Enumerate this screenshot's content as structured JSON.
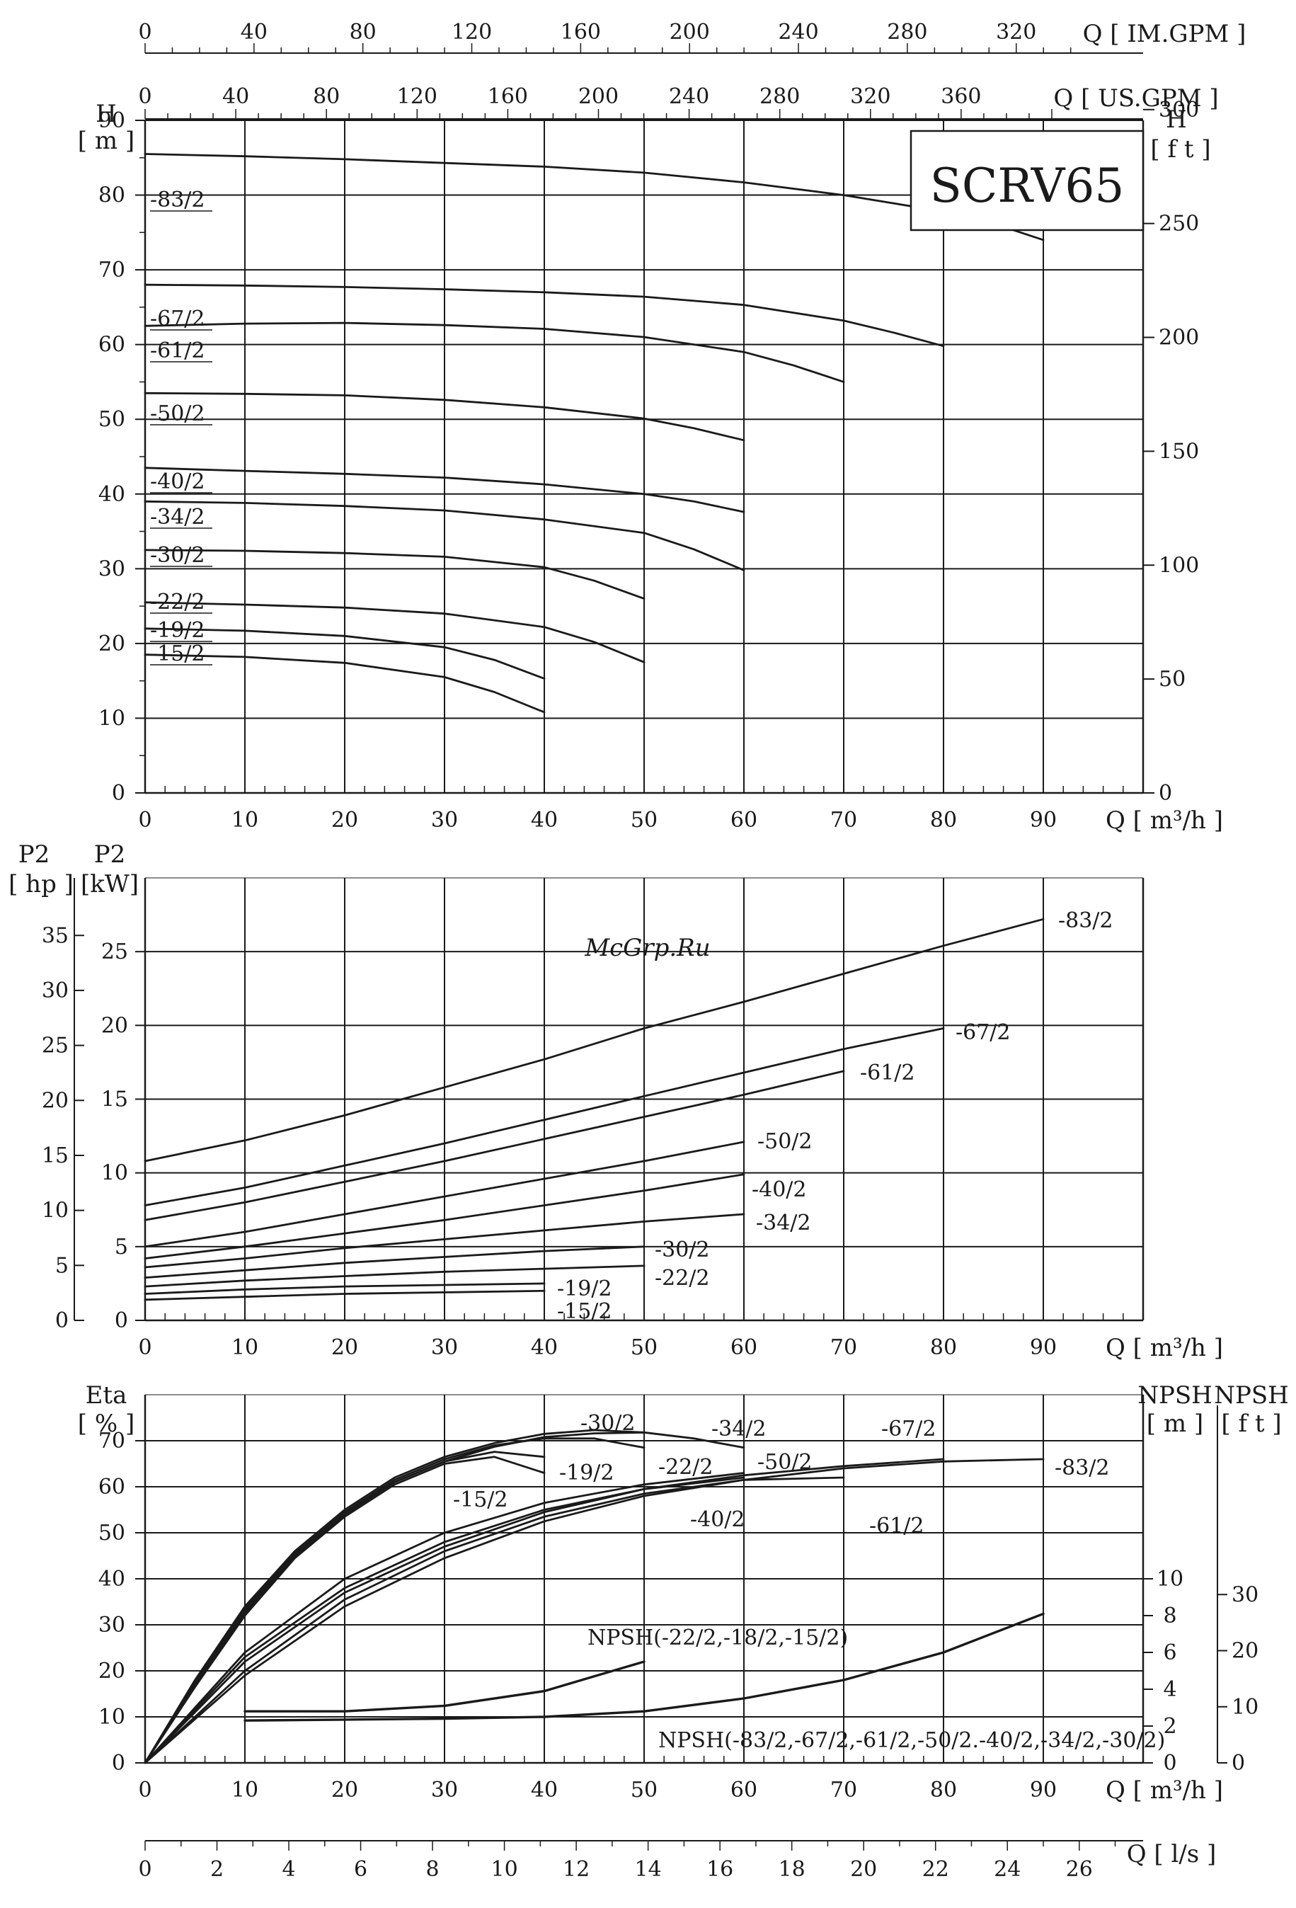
{
  "model": "SCRV65",
  "watermark": "McGrp.Ru",
  "colors": {
    "line": "#1a1a1a",
    "grid": "#1a1a1a",
    "watermark": "#d43a3a",
    "background": "#ffffff"
  },
  "axes": {
    "q_m3h": {
      "label": "Q [ m³/h ]",
      "ticks": [
        0,
        10,
        20,
        30,
        40,
        50,
        60,
        70,
        80,
        90
      ],
      "range": [
        0,
        100
      ]
    },
    "q_imgpm": {
      "label": "Q [ IM.GPM ]",
      "ticks": [
        0,
        40,
        80,
        120,
        160,
        200,
        240,
        280,
        320
      ]
    },
    "q_usgpm": {
      "label": "Q [ US.GPM ]",
      "ticks": [
        0,
        40,
        80,
        120,
        160,
        200,
        240,
        280,
        320,
        360
      ]
    },
    "q_ls": {
      "label": "Q [ l/s ]",
      "ticks": [
        0,
        2,
        4,
        6,
        8,
        10,
        12,
        14,
        16,
        18,
        20,
        22,
        24,
        26
      ]
    }
  },
  "chart_data": [
    {
      "type": "line",
      "panel": "head",
      "ylabel_left": "H [ m ]",
      "ylabel_right": "H [ f t ]",
      "ylim": [
        0,
        90
      ],
      "yticks_left": [
        0,
        10,
        20,
        30,
        40,
        50,
        60,
        70,
        80,
        90
      ],
      "yticks_right": [
        0,
        50,
        100,
        150,
        200,
        250,
        300
      ],
      "grid": true,
      "series": [
        {
          "name": "-83/2",
          "x": [
            0,
            10,
            20,
            30,
            40,
            50,
            60,
            70,
            80,
            85,
            90
          ],
          "y": [
            85.5,
            85.2,
            84.8,
            84.3,
            83.8,
            83,
            81.7,
            80,
            77.8,
            76.2,
            74
          ]
        },
        {
          "name": "-67/2",
          "x": [
            0,
            10,
            20,
            30,
            40,
            50,
            60,
            70,
            75,
            80
          ],
          "y": [
            68,
            67.9,
            67.7,
            67.4,
            67,
            66.4,
            65.3,
            63.2,
            61.6,
            59.8
          ]
        },
        {
          "name": "-61/2",
          "x": [
            0,
            10,
            20,
            30,
            40,
            50,
            60,
            65,
            70
          ],
          "y": [
            62.5,
            62.8,
            62.9,
            62.6,
            62.1,
            61,
            59,
            57.2,
            55
          ]
        },
        {
          "name": "-50/2",
          "x": [
            0,
            10,
            20,
            30,
            40,
            50,
            55,
            60
          ],
          "y": [
            53.5,
            53.4,
            53.2,
            52.6,
            51.6,
            50.1,
            48.8,
            47.2
          ]
        },
        {
          "name": "-40/2",
          "x": [
            0,
            10,
            20,
            30,
            40,
            50,
            55,
            60
          ],
          "y": [
            43.5,
            43.1,
            42.7,
            42.2,
            41.3,
            40,
            39,
            37.6
          ]
        },
        {
          "name": "-34/2",
          "x": [
            0,
            10,
            20,
            30,
            40,
            50,
            55,
            60
          ],
          "y": [
            39,
            38.8,
            38.4,
            37.8,
            36.6,
            34.8,
            32.6,
            29.8
          ]
        },
        {
          "name": "-30/2",
          "x": [
            0,
            10,
            20,
            30,
            40,
            45,
            50
          ],
          "y": [
            32.5,
            32.4,
            32.1,
            31.6,
            30.2,
            28.4,
            26
          ]
        },
        {
          "name": "-22/2",
          "x": [
            0,
            10,
            20,
            30,
            40,
            45,
            50
          ],
          "y": [
            25.5,
            25.2,
            24.8,
            24,
            22.2,
            20.2,
            17.5
          ]
        },
        {
          "name": "-19/2",
          "x": [
            0,
            10,
            20,
            30,
            35,
            40
          ],
          "y": [
            22,
            21.7,
            21,
            19.5,
            17.8,
            15.3
          ]
        },
        {
          "name": "-15/2",
          "x": [
            0,
            10,
            20,
            30,
            35,
            40
          ],
          "y": [
            18.5,
            18.2,
            17.4,
            15.5,
            13.5,
            10.8
          ]
        }
      ]
    },
    {
      "type": "line",
      "panel": "power",
      "ylabel_left_outer": "P2 [ hp ]",
      "ylabel_left_inner": "P2 [kW]",
      "ylim": [
        0,
        30
      ],
      "yticks_kw": [
        0,
        5,
        10,
        15,
        20,
        25
      ],
      "yticks_hp": [
        0,
        5,
        10,
        15,
        20,
        25,
        30,
        35
      ],
      "grid": true,
      "series": [
        {
          "name": "-83/2",
          "x": [
            0,
            10,
            20,
            30,
            40,
            50,
            60,
            70,
            80,
            90
          ],
          "y": [
            10.8,
            12.2,
            13.9,
            15.8,
            17.7,
            19.8,
            21.6,
            23.5,
            25.4,
            27.2
          ]
        },
        {
          "name": "-67/2",
          "x": [
            0,
            10,
            20,
            30,
            40,
            50,
            60,
            70,
            80
          ],
          "y": [
            7.8,
            9,
            10.5,
            12,
            13.6,
            15.2,
            16.8,
            18.4,
            19.8
          ]
        },
        {
          "name": "-61/2",
          "x": [
            0,
            10,
            20,
            30,
            40,
            50,
            60,
            70
          ],
          "y": [
            6.8,
            8,
            9.4,
            10.8,
            12.3,
            13.8,
            15.3,
            16.9
          ]
        },
        {
          "name": "-50/2",
          "x": [
            0,
            10,
            20,
            30,
            40,
            50,
            60
          ],
          "y": [
            5,
            6,
            7.2,
            8.4,
            9.6,
            10.8,
            12.1
          ]
        },
        {
          "name": "-40/2",
          "x": [
            0,
            10,
            20,
            30,
            40,
            50,
            60
          ],
          "y": [
            4.2,
            5,
            5.9,
            6.8,
            7.8,
            8.8,
            9.9
          ]
        },
        {
          "name": "-34/2",
          "x": [
            0,
            10,
            20,
            30,
            40,
            50,
            60
          ],
          "y": [
            3.6,
            4.2,
            4.9,
            5.5,
            6.1,
            6.7,
            7.2
          ]
        },
        {
          "name": "-30/2",
          "x": [
            0,
            10,
            20,
            30,
            40,
            50
          ],
          "y": [
            2.9,
            3.4,
            3.9,
            4.3,
            4.7,
            5
          ]
        },
        {
          "name": "-22/2",
          "x": [
            0,
            10,
            20,
            30,
            40,
            50
          ],
          "y": [
            2.3,
            2.7,
            3,
            3.3,
            3.5,
            3.7
          ]
        },
        {
          "name": "-19/2",
          "x": [
            0,
            10,
            20,
            30,
            40
          ],
          "y": [
            1.8,
            2.1,
            2.3,
            2.4,
            2.5
          ]
        },
        {
          "name": "-15/2",
          "x": [
            0,
            10,
            20,
            30,
            40
          ],
          "y": [
            1.4,
            1.6,
            1.8,
            1.9,
            2
          ]
        }
      ]
    },
    {
      "type": "line",
      "panel": "efficiency",
      "ylabel_left": "Eta [ % ]",
      "ylabel_right_m": "NPSH [ m ]",
      "ylabel_right_ft": "NPSH [ f t ]",
      "ylim": [
        0,
        80
      ],
      "yticks_left": [
        0,
        10,
        20,
        30,
        40,
        50,
        60,
        70
      ],
      "yticks_npsh_m": [
        0,
        2,
        4,
        6,
        8,
        10
      ],
      "yticks_npsh_ft": [
        0,
        10,
        20,
        30
      ],
      "grid": true,
      "series": [
        {
          "name": "-30/2",
          "x": [
            0,
            5,
            10,
            15,
            20,
            25,
            30,
            35,
            40,
            45,
            50
          ],
          "y": [
            0,
            18,
            34,
            46,
            55,
            62,
            66.5,
            69.5,
            71.5,
            72.3,
            71.8
          ]
        },
        {
          "name": "-34/2",
          "x": [
            0,
            5,
            10,
            15,
            20,
            25,
            30,
            35,
            40,
            45,
            50,
            55,
            60
          ],
          "y": [
            0,
            17.5,
            33,
            45,
            54,
            61,
            65.5,
            68.7,
            70.8,
            71.6,
            71.8,
            70.5,
            68.5
          ]
        },
        {
          "name": "-22/2",
          "x": [
            0,
            5,
            10,
            15,
            20,
            25,
            30,
            35,
            40,
            45,
            50
          ],
          "y": [
            0,
            17.5,
            33.5,
            45.5,
            54.5,
            61.5,
            66,
            69,
            70.5,
            70.5,
            68.5
          ]
        },
        {
          "name": "-19/2",
          "x": [
            0,
            5,
            10,
            15,
            20,
            25,
            30,
            35,
            40
          ],
          "y": [
            0,
            17,
            32.5,
            45,
            54,
            61,
            65.5,
            67.6,
            66.5
          ]
        },
        {
          "name": "-15/2",
          "x": [
            0,
            5,
            10,
            15,
            20,
            25,
            30,
            35,
            40
          ],
          "y": [
            0,
            16.5,
            32,
            44.5,
            53.5,
            60.5,
            65,
            66.5,
            63
          ]
        },
        {
          "name": "-50/2",
          "x": [
            0,
            10,
            20,
            30,
            40,
            50,
            60
          ],
          "y": [
            0,
            24,
            40,
            50,
            56.5,
            60.5,
            63
          ]
        },
        {
          "name": "-40/2",
          "x": [
            0,
            10,
            20,
            30,
            40,
            50,
            60
          ],
          "y": [
            0,
            23,
            38,
            48,
            55,
            59.5,
            62
          ]
        },
        {
          "name": "-67/2",
          "x": [
            0,
            10,
            20,
            30,
            40,
            50,
            60,
            70,
            80
          ],
          "y": [
            0,
            22,
            37,
            47,
            54.5,
            59.5,
            62.5,
            64.5,
            66
          ]
        },
        {
          "name": "-61/2",
          "x": [
            0,
            10,
            20,
            30,
            40,
            50,
            60,
            70
          ],
          "y": [
            0,
            20,
            35.5,
            46,
            53.5,
            58.5,
            61.5,
            62
          ]
        },
        {
          "name": "-83/2",
          "x": [
            0,
            10,
            20,
            30,
            40,
            50,
            60,
            70,
            80,
            90
          ],
          "y": [
            0,
            19,
            34,
            44.5,
            52.5,
            58,
            61.5,
            64,
            65.5,
            66
          ]
        },
        {
          "name": "NPSH(-22/2,-18/2,-15/2)",
          "axis": "npsh_m",
          "x": [
            10,
            20,
            30,
            40,
            45,
            50
          ],
          "y": [
            2.8,
            2.8,
            3.1,
            3.9,
            4.7,
            5.5
          ]
        },
        {
          "name": "NPSH(-83/2,-67/2,-61/2,-50/2.-40/2,-34/2,-30/2)",
          "axis": "npsh_m",
          "x": [
            10,
            20,
            30,
            40,
            50,
            60,
            70,
            80,
            90
          ],
          "y": [
            2.3,
            2.35,
            2.4,
            2.5,
            2.8,
            3.5,
            4.5,
            6,
            8.1
          ]
        }
      ]
    }
  ]
}
